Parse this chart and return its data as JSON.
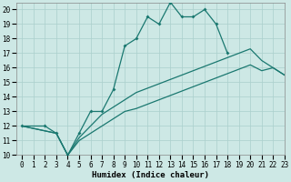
{
  "xlabel": "Humidex (Indice chaleur)",
  "xlim": [
    -0.5,
    23
  ],
  "ylim": [
    10,
    20.5
  ],
  "xticks": [
    0,
    1,
    2,
    3,
    4,
    5,
    6,
    7,
    8,
    9,
    10,
    11,
    12,
    13,
    14,
    15,
    16,
    17,
    18,
    19,
    20,
    21,
    22,
    23
  ],
  "yticks": [
    10,
    11,
    12,
    13,
    14,
    15,
    16,
    17,
    18,
    19,
    20
  ],
  "bg_color": "#cde8e5",
  "line_color": "#1a7870",
  "zigzag_x": [
    0,
    2,
    3,
    4,
    5,
    6,
    7,
    8,
    9,
    10,
    11,
    12,
    13,
    14,
    15,
    16,
    17,
    18
  ],
  "zigzag_y": [
    12,
    12,
    11.5,
    10.0,
    11.5,
    13.0,
    13.0,
    14.5,
    17.5,
    18.0,
    19.5,
    19.0,
    20.5,
    19.5,
    19.5,
    20.0,
    19.0,
    17.0
  ],
  "lower_x": [
    0,
    3,
    4,
    5,
    6,
    7,
    8,
    9,
    10,
    11,
    12,
    13,
    14,
    15,
    16,
    17,
    18,
    19,
    20,
    21,
    22,
    23
  ],
  "lower_y": [
    12,
    11.5,
    10.0,
    11.0,
    11.5,
    12.0,
    12.5,
    13.0,
    13.2,
    13.5,
    13.8,
    14.1,
    14.4,
    14.7,
    15.0,
    15.3,
    15.6,
    15.9,
    16.2,
    15.8,
    16.0,
    15.5
  ],
  "upper_x": [
    0,
    3,
    4,
    5,
    6,
    7,
    8,
    9,
    10,
    11,
    12,
    13,
    14,
    15,
    16,
    17,
    18,
    19,
    20,
    21,
    22,
    23
  ],
  "upper_y": [
    12,
    11.5,
    10.0,
    11.2,
    12.0,
    12.8,
    13.3,
    13.8,
    14.3,
    14.6,
    14.9,
    15.2,
    15.5,
    15.8,
    16.1,
    16.4,
    16.7,
    17.0,
    17.3,
    16.5,
    16.0,
    15.5
  ]
}
